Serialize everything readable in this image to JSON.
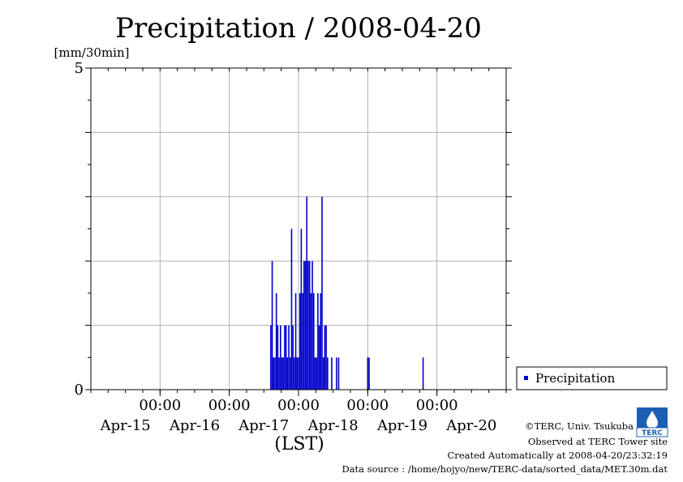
{
  "chart_data": {
    "type": "bar",
    "title": "Precipitation / 2008-04-20",
    "ylabel": "[mm/30min]",
    "xlabel": "(LST)",
    "ylim": [
      0,
      5
    ],
    "y_ticks": [
      {
        "value": 0,
        "label": "0"
      },
      {
        "value": 5,
        "label": "5"
      }
    ],
    "y_grid": [
      1,
      2,
      3,
      4
    ],
    "x_range_days": [
      0,
      6
    ],
    "x_ticks": [
      {
        "day": 1,
        "time": "00:00",
        "date": "Apr-16"
      },
      {
        "day": 2,
        "time": "00:00",
        "date": "Apr-17"
      },
      {
        "day": 3,
        "time": "00:00",
        "date": "Apr-18"
      },
      {
        "day": 4,
        "time": "00:00",
        "date": "Apr-19"
      },
      {
        "day": 5,
        "time": "00:00",
        "date": "Apr-20"
      }
    ],
    "x_date_labels": [
      {
        "day": 0.5,
        "label": "Apr-15"
      },
      {
        "day": 1.5,
        "label": "Apr-16"
      },
      {
        "day": 2.5,
        "label": "Apr-17"
      },
      {
        "day": 3.5,
        "label": "Apr-18"
      },
      {
        "day": 4.5,
        "label": "Apr-19"
      },
      {
        "day": 5.5,
        "label": "Apr-20"
      }
    ],
    "x_time_labels": [
      {
        "day": 1,
        "label": "00:00"
      },
      {
        "day": 2,
        "label": "00:00"
      },
      {
        "day": 3,
        "label": "00:00"
      },
      {
        "day": 4,
        "label": "00:00"
      },
      {
        "day": 5,
        "label": "00:00"
      }
    ],
    "grid": true,
    "legend_position": "bottom-right outside",
    "series": [
      {
        "name": "Precipitation",
        "color": "#0000cc",
        "points": [
          [
            2.6,
            1.0
          ],
          [
            2.62,
            2.0
          ],
          [
            2.64,
            0.5
          ],
          [
            2.66,
            0.5
          ],
          [
            2.68,
            1.5
          ],
          [
            2.7,
            1.0
          ],
          [
            2.72,
            0.5
          ],
          [
            2.74,
            1.0
          ],
          [
            2.76,
            0.5
          ],
          [
            2.78,
            0.5
          ],
          [
            2.8,
            1.0
          ],
          [
            2.82,
            1.0
          ],
          [
            2.84,
            0.5
          ],
          [
            2.86,
            1.0
          ],
          [
            2.88,
            0.5
          ],
          [
            2.9,
            2.5
          ],
          [
            2.92,
            1.0
          ],
          [
            2.94,
            0.5
          ],
          [
            2.96,
            1.5
          ],
          [
            2.98,
            0.5
          ],
          [
            3.0,
            0.5
          ],
          [
            3.02,
            1.5
          ],
          [
            3.04,
            2.5
          ],
          [
            3.06,
            1.5
          ],
          [
            3.08,
            2.0
          ],
          [
            3.1,
            2.0
          ],
          [
            3.12,
            3.0
          ],
          [
            3.14,
            2.0
          ],
          [
            3.16,
            2.0
          ],
          [
            3.18,
            1.5
          ],
          [
            3.2,
            2.0
          ],
          [
            3.22,
            1.5
          ],
          [
            3.24,
            0.5
          ],
          [
            3.26,
            0.5
          ],
          [
            3.28,
            1.5
          ],
          [
            3.3,
            1.0
          ],
          [
            3.32,
            1.5
          ],
          [
            3.34,
            3.0
          ],
          [
            3.36,
            0.5
          ],
          [
            3.38,
            1.0
          ],
          [
            3.4,
            1.0
          ],
          [
            3.42,
            0.5
          ],
          [
            3.48,
            0.5
          ],
          [
            3.55,
            0.5
          ],
          [
            3.58,
            0.5
          ],
          [
            4.0,
            0.5
          ],
          [
            4.02,
            0.5
          ],
          [
            4.8,
            0.5
          ]
        ]
      }
    ]
  },
  "credits": {
    "copyright": "©TERC, Univ. Tsukuba",
    "observed": "Observed at TERC Tower site",
    "created": "Created Automatically at 2008-04-20/23:32:19",
    "source": "Data source : /home/hojyo/new/TERC-data/sorted_data/MET.30m.dat"
  },
  "logo": {
    "text": "TERC",
    "color": "#1a5fb4"
  }
}
